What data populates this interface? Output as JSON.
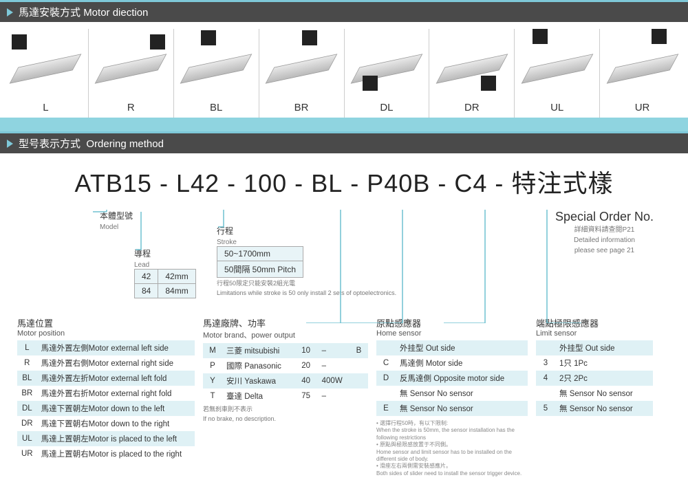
{
  "colors": {
    "header_bg": "#4a4a4a",
    "accent": "#7ec8d8",
    "band": "#8fd4e0",
    "row_alt": "#dff1f5",
    "line": "#6fc0d0"
  },
  "section1": {
    "title_cn": "馬達安裝方式",
    "title_en": "Motor diection"
  },
  "directions": [
    "L",
    "R",
    "BL",
    "BR",
    "DL",
    "DR",
    "UL",
    "UR"
  ],
  "section2": {
    "title_cn": "型号表示方式",
    "title_en": "Ordering method"
  },
  "part_number": [
    "ATB15",
    "-",
    "L42",
    "-",
    "100",
    "-",
    "BL",
    "-",
    "P40B",
    "-",
    "C4",
    "-",
    "特注式樣"
  ],
  "model_block": {
    "title_cn": "本體型號",
    "title_en": "Model"
  },
  "lead_block": {
    "title_cn": "導程",
    "title_en": "Lead",
    "rows": [
      [
        "42",
        "42mm"
      ],
      [
        "84",
        "84mm"
      ]
    ]
  },
  "stroke_block": {
    "title_cn": "行程",
    "title_en": "Stroke",
    "rows": [
      [
        "50~1700mm"
      ],
      [
        "50間隔 50mm Pitch"
      ]
    ],
    "note_cn": "行程50限定只能安裝2組光電",
    "note_en": "Limitations while stroke is 50 only install 2 sets of optoelectronics."
  },
  "special": {
    "title": "Special Order No.",
    "sub_cn": "詳細資料請查閱P21",
    "sub_en1": "Detailed information",
    "sub_en2": "please see page 21"
  },
  "motor_position": {
    "title_cn": "馬達位置",
    "title_en": "Motor position",
    "rows": [
      [
        "L",
        "馬達外置左側Motor external left side"
      ],
      [
        "R",
        "馬達外置右側Motor external right side"
      ],
      [
        "BL",
        "馬達外置左折Motor external left fold"
      ],
      [
        "BR",
        "馬達外置右折Motor external right fold"
      ],
      [
        "DL",
        "馬達下置朝左Motor down to the left"
      ],
      [
        "DR",
        "馬達下置朝右Motor down to the right"
      ],
      [
        "UL",
        "馬達上置朝左Motor is placed to the left"
      ],
      [
        "UR",
        "馬達上置朝右Motor is placed to the right"
      ]
    ]
  },
  "motor_brand": {
    "title_cn": "馬達廠牌、功率",
    "title_en": "Motor brand、power output",
    "rows": [
      [
        "M",
        "三菱 mitsubishi",
        "10",
        "–",
        "B"
      ],
      [
        "P",
        "國際 Panasonic",
        "20",
        "–",
        ""
      ],
      [
        "Y",
        "安川 Yaskawa",
        "40",
        "400W",
        ""
      ],
      [
        "T",
        "臺達 Delta",
        "75",
        "–",
        ""
      ]
    ],
    "note_cn": "若無刹車則不表示",
    "note_en": "If no brake, no description."
  },
  "home_sensor": {
    "title_cn": "原點感應器",
    "title_en": "Home sensor",
    "rows": [
      [
        "",
        "外挂型 Out side"
      ],
      [
        "C",
        "馬達側 Motor side"
      ],
      [
        "D",
        "反馬達側 Opposite motor side"
      ],
      [
        "",
        "無 Sensor No sensor"
      ],
      [
        "E",
        "無 Sensor No sensor"
      ]
    ],
    "foot1_cn": "• 選擇行程50時，有以下限制:",
    "foot1_en": "When the stroke is 50mm, the sensor installation has the following restrictions",
    "foot2_cn": "• 原點與極限感放置于不同側。",
    "foot2_en": "Home sensor and limit sensor has to be installed on the different side of body.",
    "foot3_cn": "• 滑座左右兩側需安裝感應片。",
    "foot3_en": "Both sides of slider need to install the sensor trigger device."
  },
  "limit_sensor": {
    "title_cn": "端點極限感應器",
    "title_en": "Limit sensor",
    "rows": [
      [
        "",
        "外挂型 Out side"
      ],
      [
        "3",
        "1只 1Pc"
      ],
      [
        "4",
        "2只 2Pc"
      ],
      [
        "",
        "無 Sensor No sensor"
      ],
      [
        "5",
        "無 Sensor No sensor"
      ]
    ]
  }
}
